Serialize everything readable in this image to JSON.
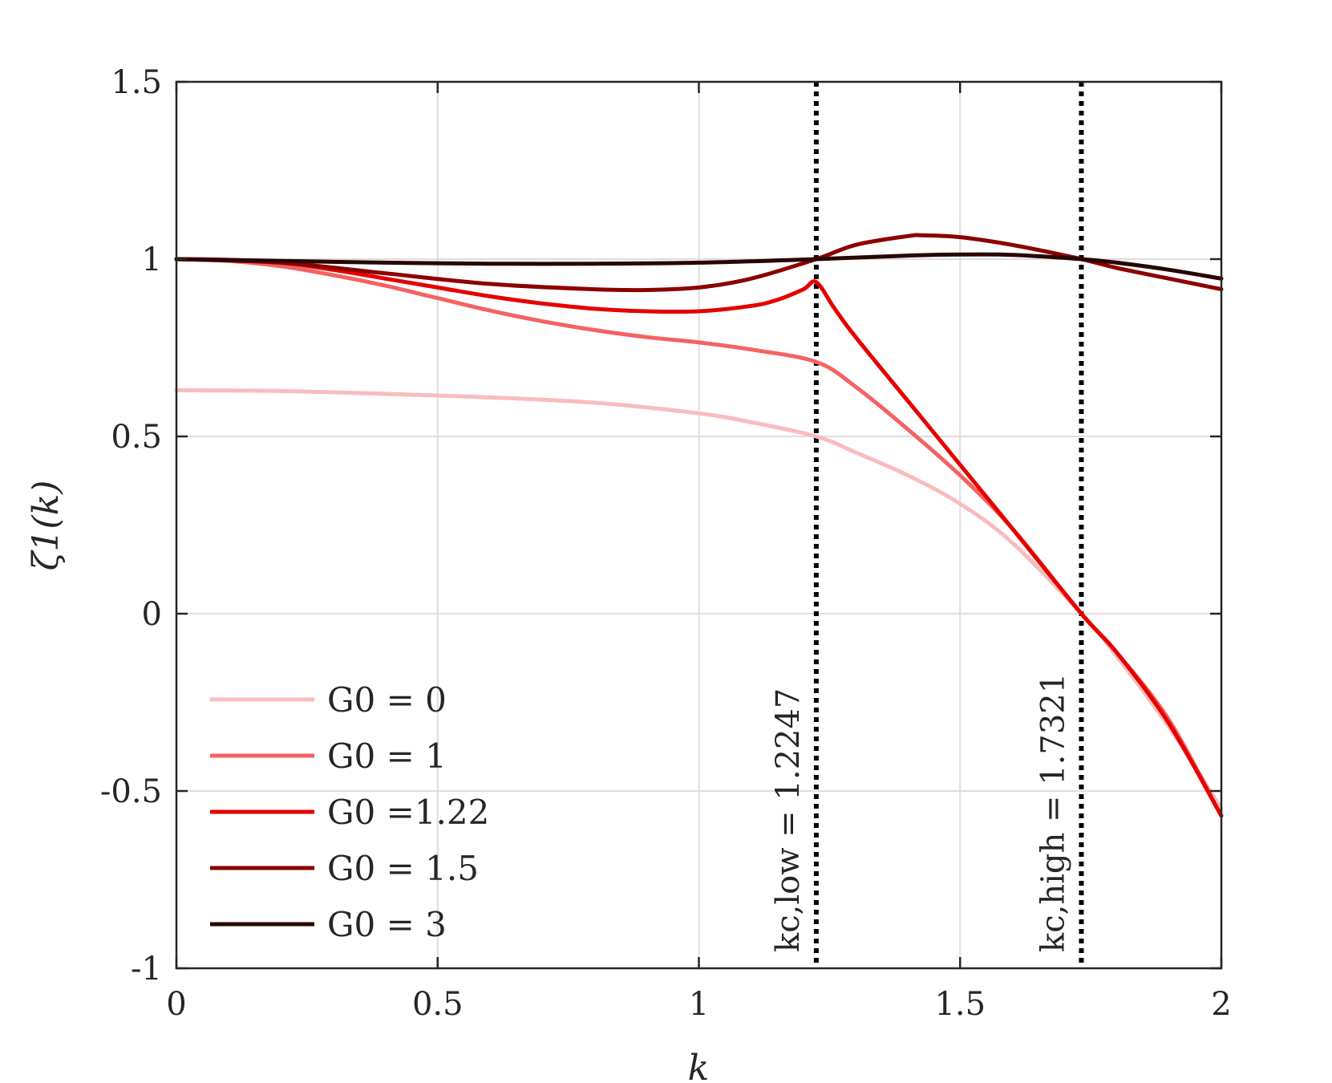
{
  "chart_data": {
    "type": "line",
    "xlabel": "k",
    "ylabel": "ζ1(k)",
    "xlim": [
      0,
      2
    ],
    "ylim": [
      -1,
      1.5
    ],
    "xticks": [
      0,
      0.5,
      1,
      1.5,
      2
    ],
    "xtick_labels": [
      "0",
      "0.5",
      "1",
      "1.5",
      "2"
    ],
    "yticks": [
      -1,
      -0.5,
      0,
      0.5,
      1,
      1.5
    ],
    "ytick_labels": [
      "-1",
      "-0.5",
      "0",
      "0.5",
      "1",
      "1.5"
    ],
    "grid": true,
    "legend_position": "bottom-left",
    "series": [
      {
        "name": "G0 = 0",
        "color": "#f9bcbc",
        "x": [
          0,
          0.2,
          0.4,
          0.6,
          0.8,
          1.0,
          1.1,
          1.2247,
          1.3,
          1.4,
          1.5,
          1.6,
          1.7321,
          1.8,
          1.9,
          2.0
        ],
        "y": [
          0.63,
          0.628,
          0.62,
          0.61,
          0.595,
          0.565,
          0.54,
          0.5,
          0.455,
          0.39,
          0.31,
          0.2,
          0.0,
          -0.12,
          -0.32,
          -0.55
        ]
      },
      {
        "name": "G0 = 1",
        "color": "#f46262",
        "x": [
          0,
          0.1,
          0.2,
          0.3,
          0.4,
          0.5,
          0.6,
          0.7,
          0.8,
          0.9,
          1.0,
          1.1,
          1.2247,
          1.3,
          1.4,
          1.5,
          1.6,
          1.7321,
          1.8,
          1.9,
          2.0
        ],
        "y": [
          1.0,
          0.995,
          0.98,
          0.955,
          0.925,
          0.89,
          0.855,
          0.825,
          0.8,
          0.78,
          0.765,
          0.745,
          0.71,
          0.64,
          0.52,
          0.39,
          0.24,
          0.0,
          -0.11,
          -0.3,
          -0.57
        ]
      },
      {
        "name": "G0 =1.22",
        "color": "#e60000",
        "x": [
          0,
          0.1,
          0.2,
          0.3,
          0.4,
          0.5,
          0.6,
          0.7,
          0.8,
          0.9,
          1.0,
          1.1,
          1.15,
          1.2,
          1.2247,
          1.26,
          1.3,
          1.4,
          1.5,
          1.6,
          1.7321,
          1.8,
          1.9,
          2.0
        ],
        "y": [
          1.0,
          0.998,
          0.99,
          0.97,
          0.945,
          0.92,
          0.895,
          0.875,
          0.86,
          0.853,
          0.853,
          0.868,
          0.885,
          0.915,
          0.935,
          0.86,
          0.78,
          0.6,
          0.42,
          0.24,
          0.0,
          -0.11,
          -0.31,
          -0.57
        ]
      },
      {
        "name": "G0 = 1.5",
        "color": "#8c0000",
        "x": [
          0,
          0.2,
          0.4,
          0.6,
          0.8,
          0.9,
          1.0,
          1.1,
          1.2247,
          1.3,
          1.4,
          1.43,
          1.5,
          1.6,
          1.7321,
          1.8,
          1.9,
          2.0
        ],
        "y": [
          1.0,
          0.99,
          0.96,
          0.93,
          0.915,
          0.913,
          0.92,
          0.945,
          1.0,
          1.04,
          1.065,
          1.067,
          1.062,
          1.04,
          1.0,
          0.975,
          0.945,
          0.915
        ]
      },
      {
        "name": "G0 = 3",
        "color": "#2a0505",
        "x": [
          0,
          0.2,
          0.4,
          0.6,
          0.8,
          1.0,
          1.2247,
          1.4,
          1.5,
          1.6,
          1.7321,
          1.8,
          1.9,
          2.0
        ],
        "y": [
          1.0,
          0.995,
          0.99,
          0.987,
          0.987,
          0.99,
          1.0,
          1.01,
          1.013,
          1.012,
          1.0,
          0.99,
          0.97,
          0.945
        ]
      }
    ],
    "vlines": [
      {
        "x": 1.2247,
        "label": "kc,low = 1.2247"
      },
      {
        "x": 1.7321,
        "label": "kc,high = 1.7321"
      }
    ]
  }
}
